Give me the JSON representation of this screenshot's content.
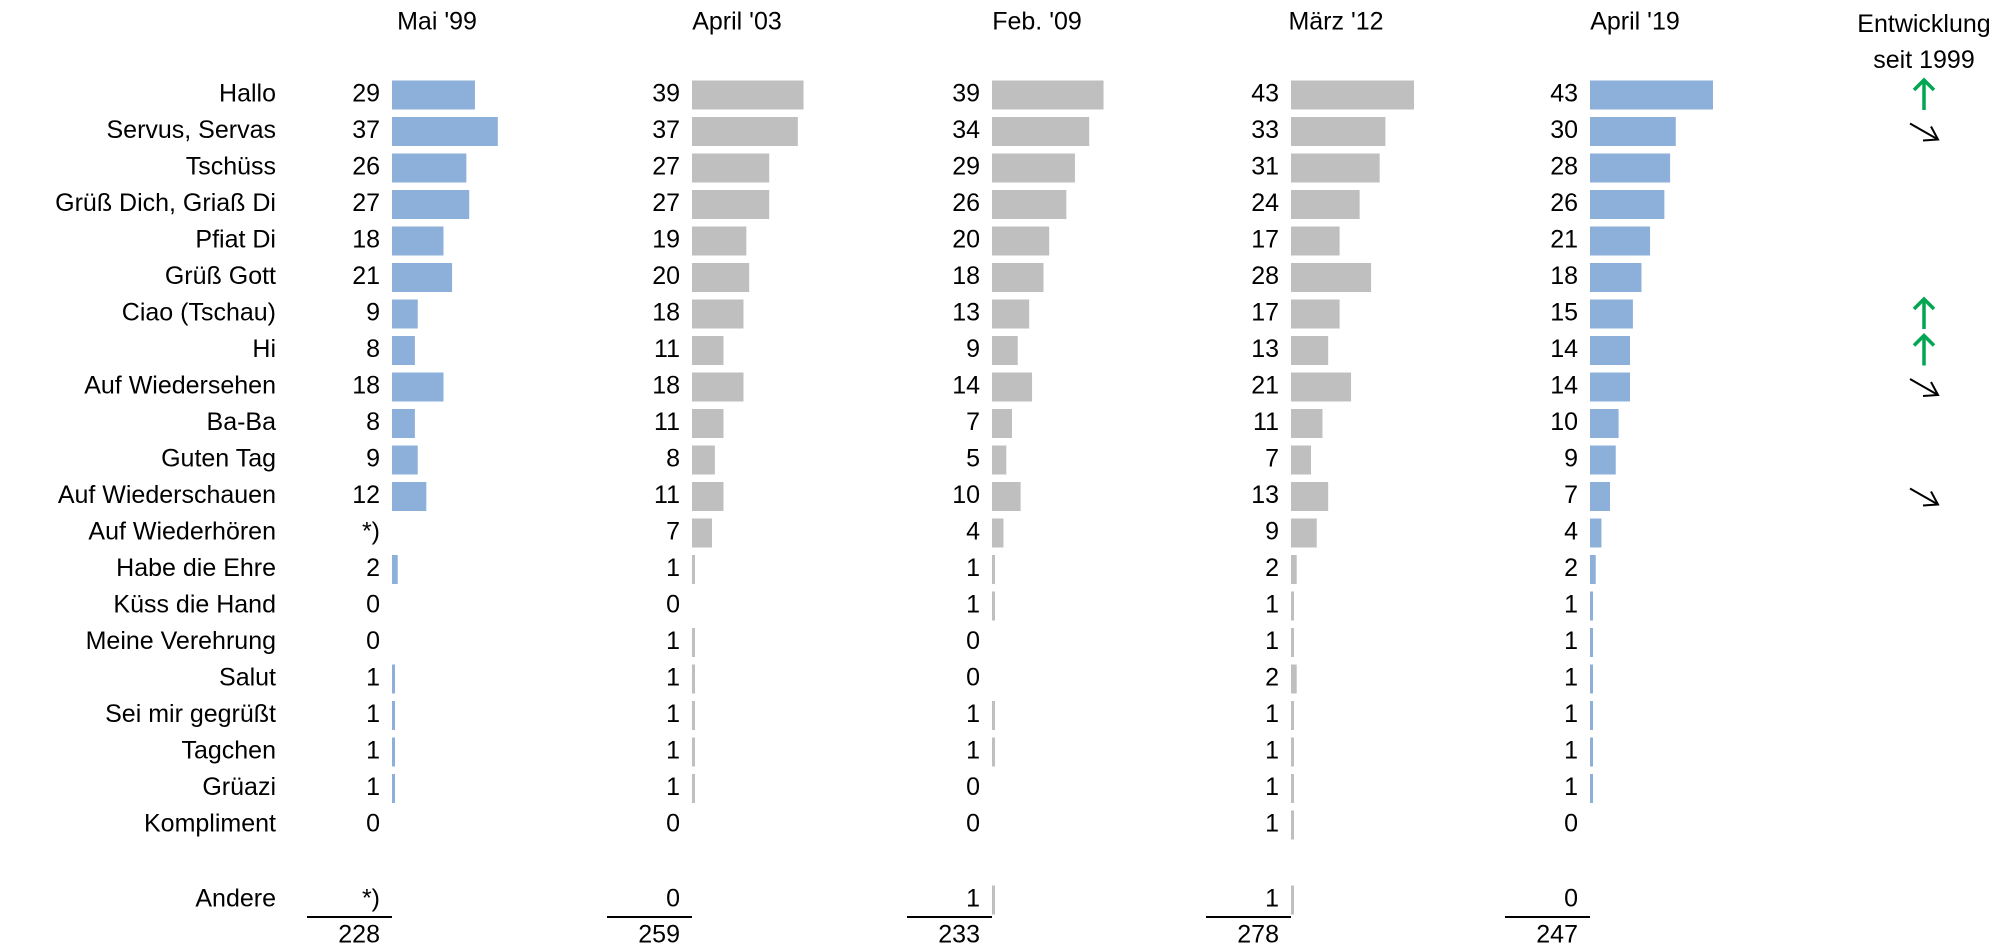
{
  "chart_data": {
    "type": "bar",
    "categories": [
      "Hallo",
      "Servus, Servas",
      "Tschüss",
      "Grüß Dich, Griaß Di",
      "Pfiat Di",
      "Grüß Gott",
      "Ciao (Tschau)",
      "Hi",
      "Auf Wiedersehen",
      "Ba-Ba",
      "Guten Tag",
      "Auf Wiederschauen",
      "Auf Wiederhören",
      "Habe die Ehre",
      "Küss die Hand",
      "Meine Verehrung",
      "Salut",
      "Sei mir gegrüßt",
      "Tagchen",
      "Grüazi",
      "Kompliment"
    ],
    "other_label": "Andere",
    "xlim": [
      0,
      43
    ],
    "series": [
      {
        "name": "Mai '99",
        "color": "#8db0db",
        "values": [
          29,
          37,
          26,
          27,
          18,
          21,
          9,
          8,
          18,
          8,
          9,
          12,
          null,
          2,
          0,
          0,
          1,
          1,
          1,
          1,
          0
        ],
        "labels": [
          "29",
          "37",
          "26",
          "27",
          "18",
          "21",
          "9",
          "8",
          "18",
          "8",
          "9",
          "12",
          "*)",
          "2",
          "0",
          "0",
          "1",
          "1",
          "1",
          "1",
          "0"
        ],
        "other": null,
        "other_label": "*)",
        "total": "228"
      },
      {
        "name": "April '03",
        "color": "#bfbfbf",
        "values": [
          39,
          37,
          27,
          27,
          19,
          20,
          18,
          11,
          18,
          11,
          8,
          11,
          7,
          1,
          0,
          1,
          1,
          1,
          1,
          1,
          0
        ],
        "labels": [
          "39",
          "37",
          "27",
          "27",
          "19",
          "20",
          "18",
          "11",
          "18",
          "11",
          "8",
          "11",
          "7",
          "1",
          "0",
          "1",
          "1",
          "1",
          "1",
          "1",
          "0"
        ],
        "other": 0,
        "other_label": "0",
        "total": "259"
      },
      {
        "name": "Feb. '09",
        "color": "#bfbfbf",
        "values": [
          39,
          34,
          29,
          26,
          20,
          18,
          13,
          9,
          14,
          7,
          5,
          10,
          4,
          1,
          1,
          0,
          0,
          1,
          1,
          0,
          0
        ],
        "labels": [
          "39",
          "34",
          "29",
          "26",
          "20",
          "18",
          "13",
          "9",
          "14",
          "7",
          "5",
          "10",
          "4",
          "1",
          "1",
          "0",
          "0",
          "1",
          "1",
          "0",
          "0"
        ],
        "other": 1,
        "other_label": "1",
        "total": "233"
      },
      {
        "name": "März '12",
        "color": "#bfbfbf",
        "values": [
          43,
          33,
          31,
          24,
          17,
          28,
          17,
          13,
          21,
          11,
          7,
          13,
          9,
          2,
          1,
          1,
          2,
          1,
          1,
          1,
          1
        ],
        "labels": [
          "43",
          "33",
          "31",
          "24",
          "17",
          "28",
          "17",
          "13",
          "21",
          "11",
          "7",
          "13",
          "9",
          "2",
          "1",
          "1",
          "2",
          "1",
          "1",
          "1",
          "1"
        ],
        "other": 1,
        "other_label": "1",
        "total": "278"
      },
      {
        "name": "April '19",
        "color": "#8db0db",
        "values": [
          43,
          30,
          28,
          26,
          21,
          18,
          15,
          14,
          14,
          10,
          9,
          7,
          4,
          2,
          1,
          1,
          1,
          1,
          1,
          1,
          0
        ],
        "labels": [
          "43",
          "30",
          "28",
          "26",
          "21",
          "18",
          "15",
          "14",
          "14",
          "10",
          "9",
          "7",
          "4",
          "2",
          "1",
          "1",
          "1",
          "1",
          "1",
          "1",
          "0"
        ],
        "other": 0,
        "other_label": "0",
        "total": "247"
      }
    ],
    "trend": {
      "title_line1": "Entwicklung",
      "title_line2": "seit 1999",
      "up_color": "#00a651",
      "down_color": "#000000",
      "markers": [
        {
          "category": "Hallo",
          "direction": "up"
        },
        {
          "category": "Servus, Servas",
          "direction": "down"
        },
        {
          "category": "Ciao (Tschau)",
          "direction": "up"
        },
        {
          "category": "Hi",
          "direction": "up"
        },
        {
          "category": "Auf Wiedersehen",
          "direction": "down"
        },
        {
          "category": "Auf Wiederschauen",
          "direction": "down"
        }
      ]
    }
  }
}
